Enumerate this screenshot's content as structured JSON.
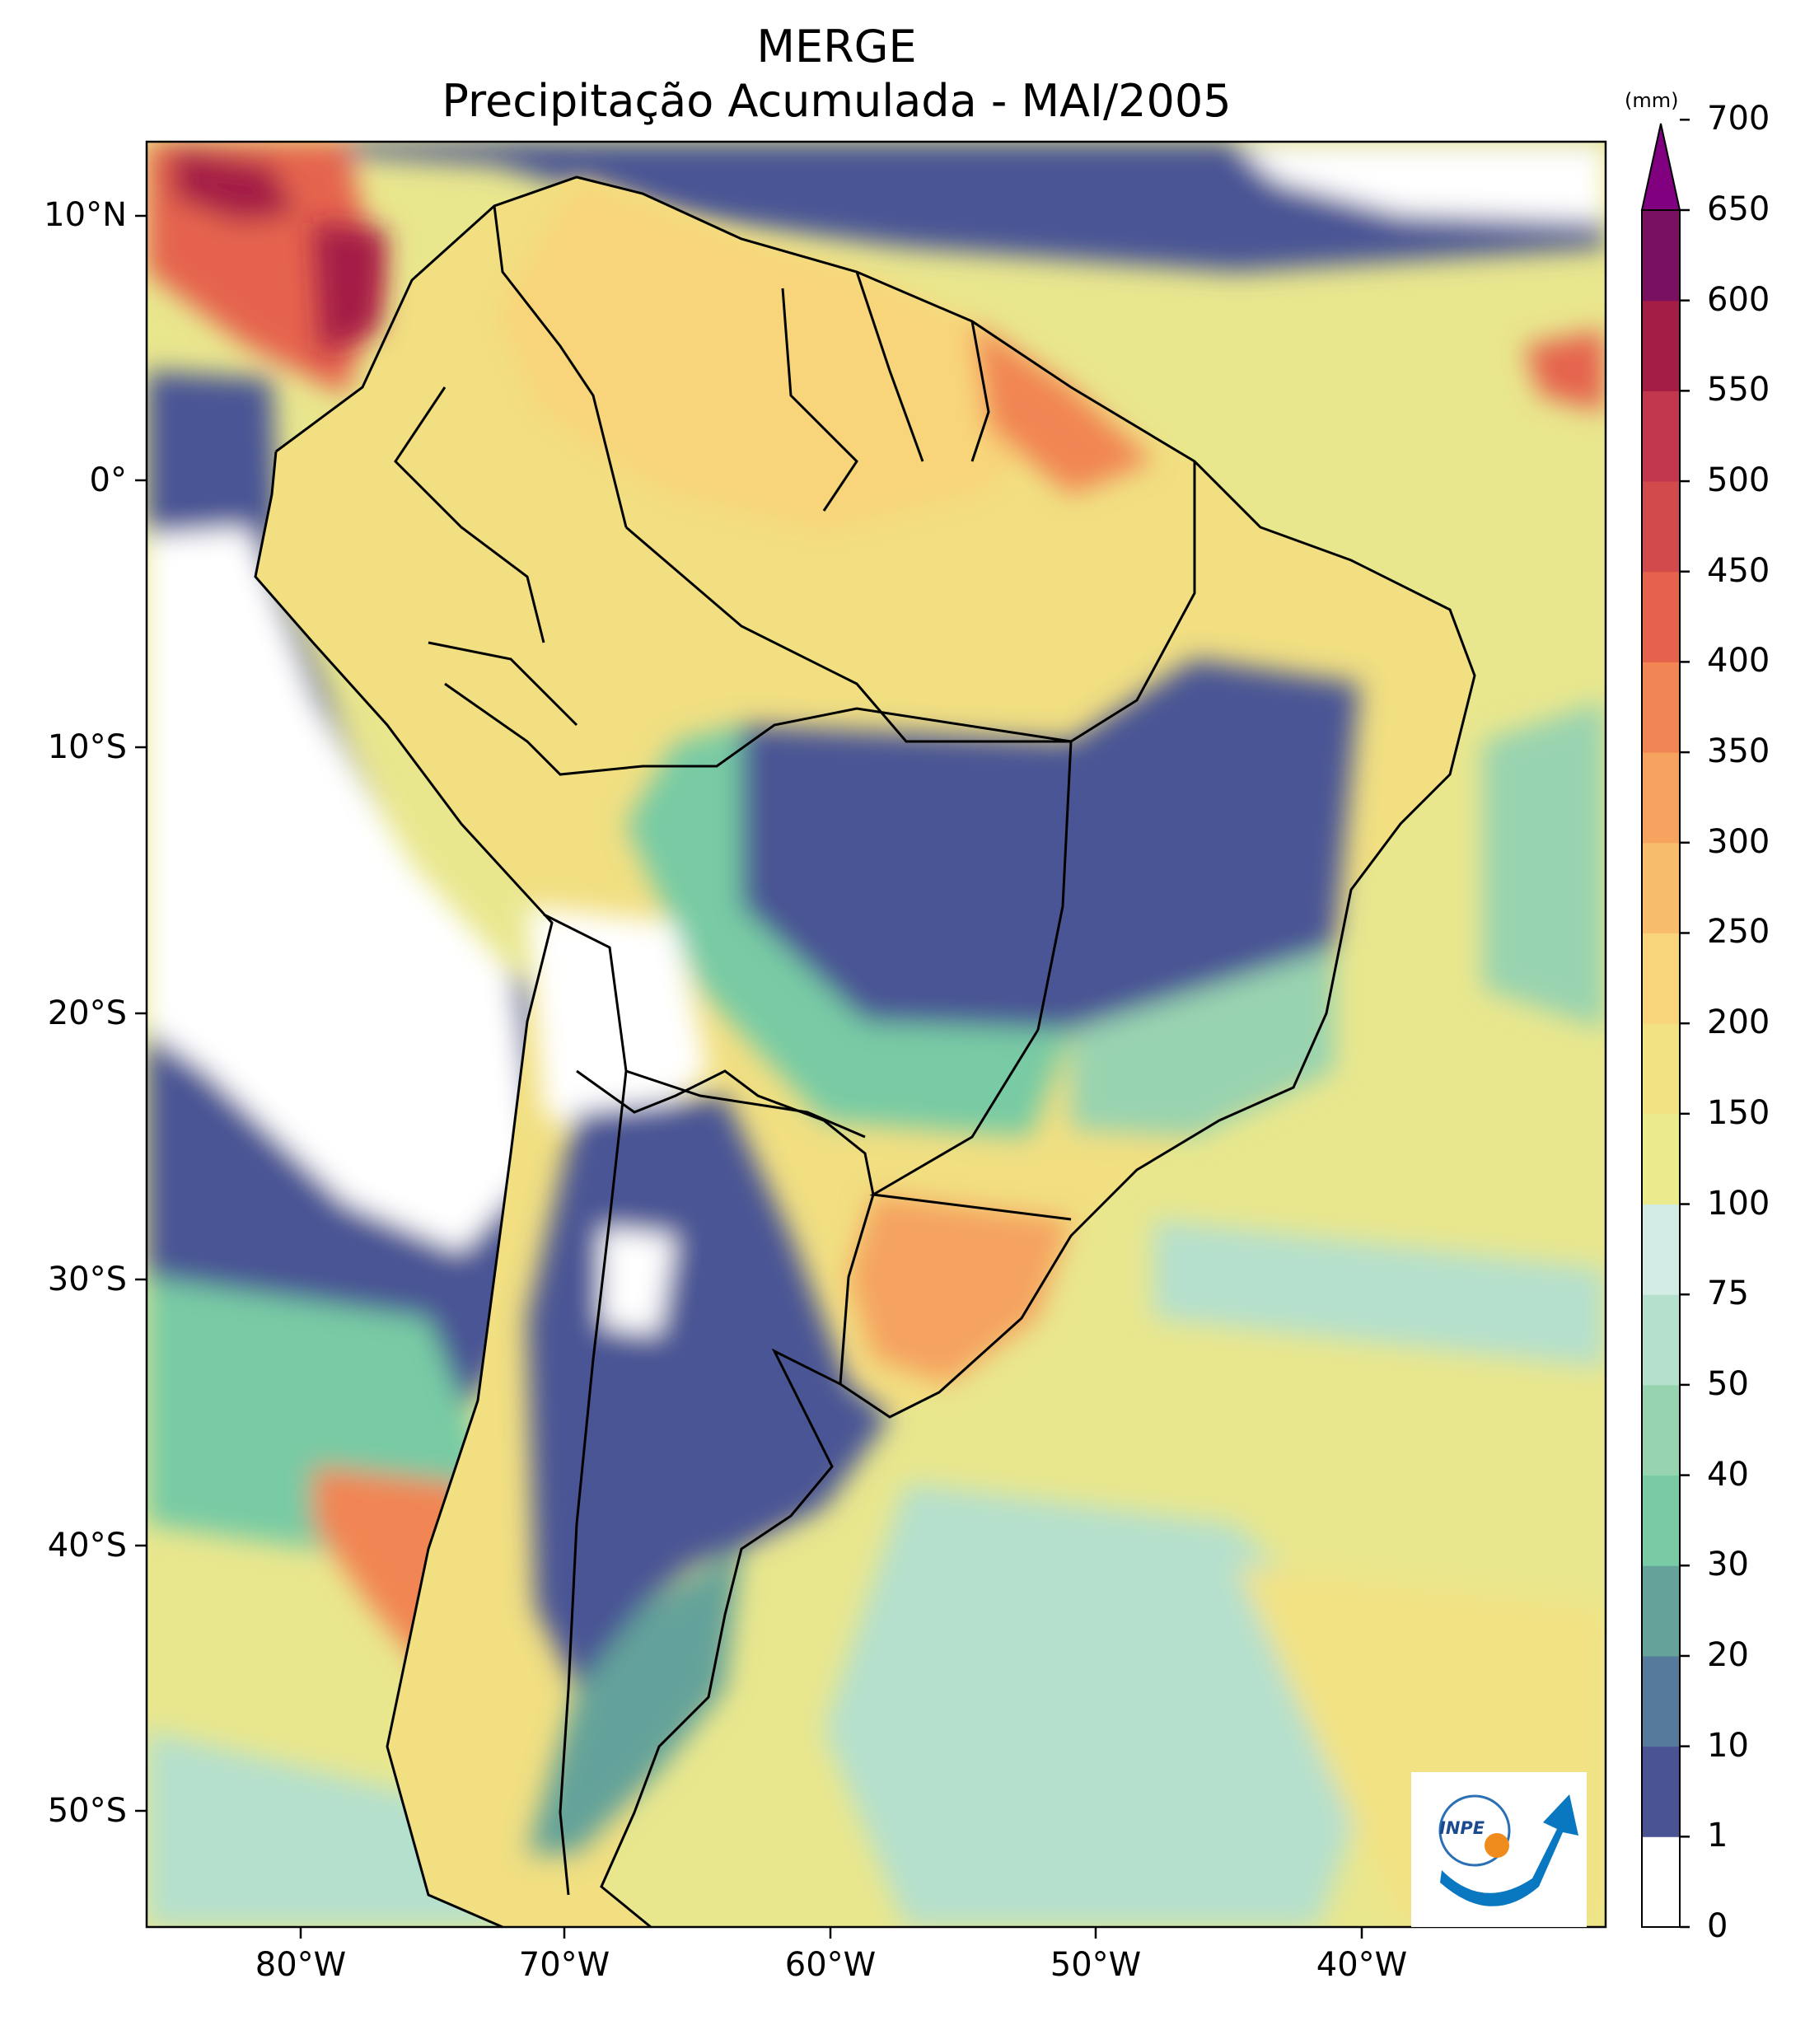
{
  "title": {
    "line1": "MERGE",
    "line2": "Precipitação Acumulada - MAI/2005"
  },
  "axes": {
    "lat_labels": [
      "10°N",
      "0°",
      "10°S",
      "20°S",
      "30°S",
      "40°S",
      "50°S"
    ],
    "lon_labels": [
      "80°W",
      "70°W",
      "60°W",
      "50°W",
      "40°W"
    ]
  },
  "colorbar": {
    "unit": "(mm)",
    "levels": [
      "0",
      "1",
      "10",
      "20",
      "30",
      "40",
      "50",
      "75",
      "100",
      "150",
      "200",
      "250",
      "300",
      "350",
      "400",
      "450",
      "500",
      "550",
      "600",
      "650",
      "700"
    ],
    "colors": [
      "#ffffff",
      "#4a5494",
      "#567a9c",
      "#64a29a",
      "#78cba4",
      "#98d3b0",
      "#b5e0cd",
      "#d4ece6",
      "#eaeb8d",
      "#f2e284",
      "#f8d57a",
      "#f8bd6c",
      "#f5a35f",
      "#f18553",
      "#e5634d",
      "#d24b4c",
      "#c2374d",
      "#a41d46",
      "#7a1160"
    ],
    "extend_color": "#800080"
  },
  "logo": {
    "text": "INPE"
  },
  "colors": {
    "ocean_bg": "#e9e78e",
    "land_bg": "#f1df82",
    "white_dry": "#ffffff",
    "dark_dry": "#4a5494"
  }
}
